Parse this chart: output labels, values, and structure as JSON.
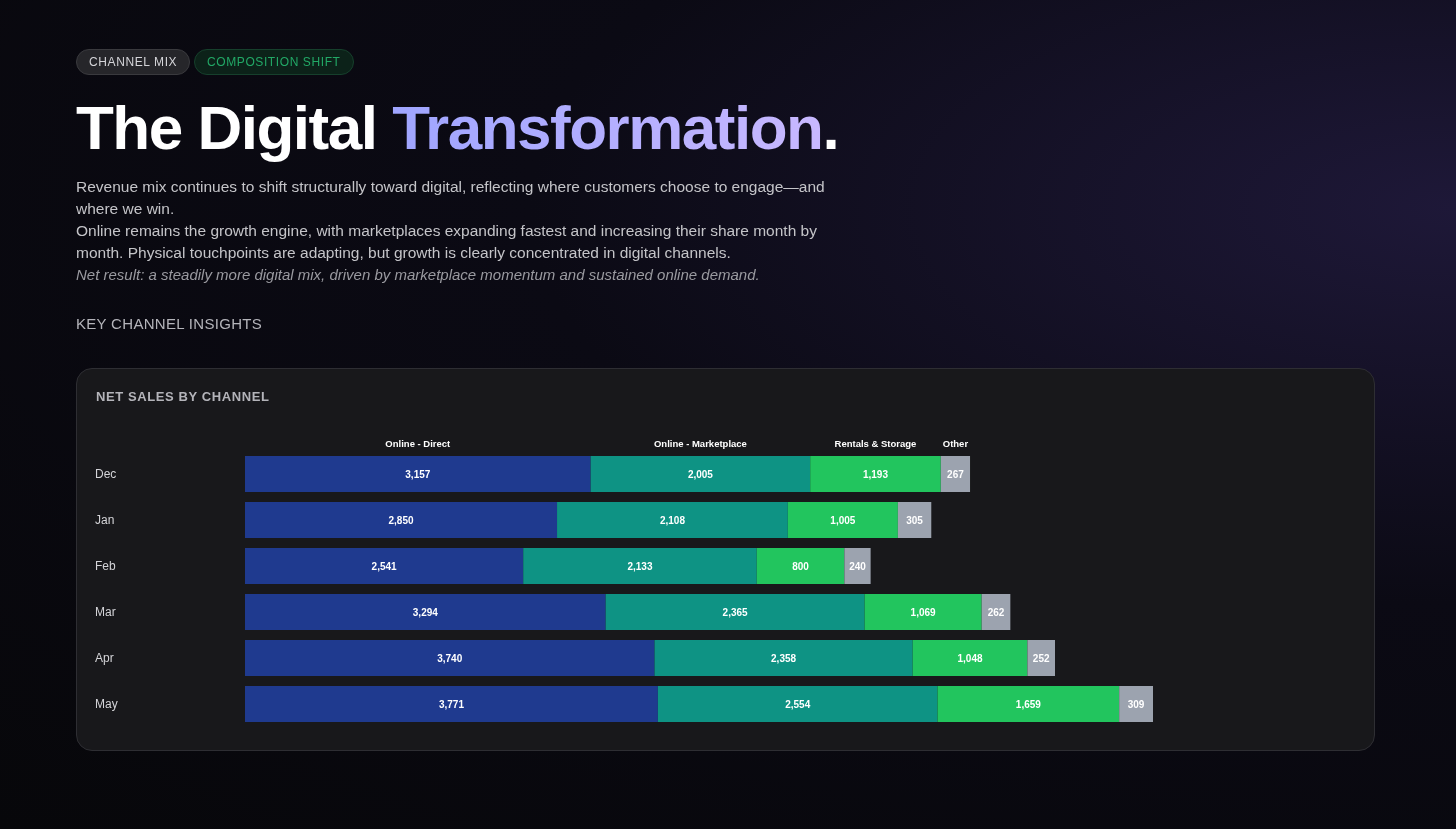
{
  "chart_data": {
    "type": "bar",
    "orientation": "horizontal",
    "stacked": true,
    "legend": "top",
    "grid": false,
    "title": "The Digital Transformation.",
    "subtitle": "Revenue mix continues to shift structurally toward digital, reflecting where customers choose to engage—and where we win.\nOnline remains the growth engine, with marketplaces expanding fastest and increasing their share month by month. Physical touchpoints are adapting, but growth is clearly concentrated in digital channels.",
    "annotations": [
      "CHANNEL MIX",
      "COMPOSITION SHIFT",
      "Net result: a steadily more digital mix, driven by marketplace momentum and sustained online demand.",
      "KEY CHANNEL INSIGHTS",
      "NET SALES BY CHANNEL"
    ],
    "categories": [
      "Dec",
      "Jan",
      "Feb",
      "Mar",
      "Apr",
      "May"
    ],
    "series": [
      {
        "name": "Online - Direct",
        "color": "#1f3a8f",
        "values": [
          3157,
          2850,
          2541,
          3294,
          3740,
          3771
        ],
        "value_labels": [
          "3,157",
          "2,850",
          "2,541",
          "3,294",
          "3,740",
          "3,771"
        ]
      },
      {
        "name": "Online - Marketplace",
        "color": "#0e9384",
        "values": [
          2005,
          2108,
          2133,
          2365,
          2358,
          2554
        ],
        "value_labels": [
          "2,005",
          "2,108",
          "2,133",
          "2,365",
          "2,358",
          "2,554"
        ]
      },
      {
        "name": "Rentals & Storage",
        "color": "#22c55e",
        "values": [
          1193,
          1005,
          800,
          1069,
          1048,
          1659
        ],
        "value_labels": [
          "1,193",
          "1,005",
          "800",
          "1,069",
          "1,048",
          "1,659"
        ]
      },
      {
        "name": "Other",
        "color": "#9ca3af",
        "values": [
          267,
          305,
          240,
          262,
          252,
          309
        ],
        "value_labels": [
          "267",
          "305",
          "240",
          "262",
          "252",
          "309"
        ]
      }
    ]
  }
}
